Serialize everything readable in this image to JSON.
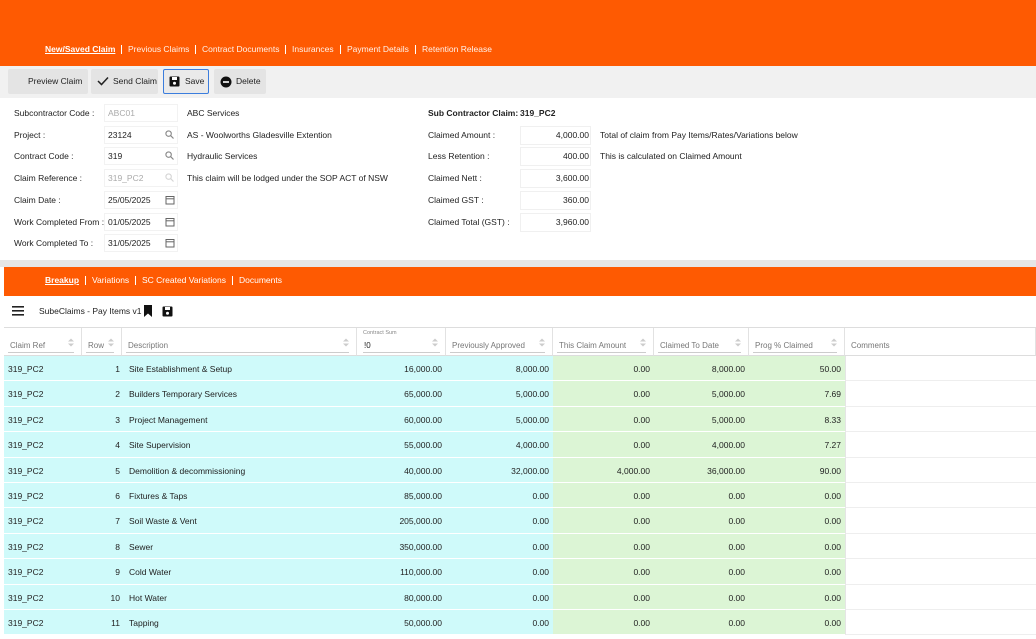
{
  "nav": {
    "tabs": [
      "New/Saved Claim",
      "Previous Claims",
      "Contract Documents",
      "Insurances",
      "Payment Details",
      "Retention Release"
    ]
  },
  "toolbar": {
    "buttons": [
      "Preview Claim",
      "Send Claim",
      "Save",
      "Delete"
    ]
  },
  "form": {
    "left": [
      {
        "label": "Subcontractor Code :",
        "value": "ABC01",
        "extra": "ABC Services"
      },
      {
        "label": "Project :",
        "value": "23124",
        "extra": "AS - Woolworths Gladesville Extention"
      },
      {
        "label": "Contract Code :",
        "value": "319",
        "extra": "Hydraulic Services"
      },
      {
        "label": "Claim Reference :",
        "value": "319_PC2",
        "extra": "This claim will be lodged under the SOP ACT of NSW"
      },
      {
        "label": "Claim Date :",
        "value": "25/05/2025"
      },
      {
        "label": "Work Completed From :",
        "value": "01/05/2025"
      },
      {
        "label": "Work Completed To :",
        "value": "31/05/2025"
      }
    ],
    "right": [
      {
        "label": "Sub Contractor Claim:",
        "value": "319_PC2"
      },
      {
        "label": "Claimed Amount :",
        "value": "4,000.00",
        "note": "Total of claim from Pay Items/Rates/Variations below"
      },
      {
        "label": "Less Retention :",
        "value": "400.00",
        "note": "This is calculated on Claimed Amount"
      },
      {
        "label": "Claimed Nett :",
        "value": "3,600.00"
      },
      {
        "label": "Claimed GST :",
        "value": "360.00"
      },
      {
        "label": "Claimed Total (GST) :",
        "value": "3,960.00"
      }
    ]
  },
  "sub_tabs": [
    "Breakup",
    "Variations",
    "SC Created Variations",
    "Documents"
  ],
  "grid": {
    "title": "SubeClaims - Pay Items v1",
    "columns": [
      "Claim Ref",
      "Row",
      "Description",
      "Contract Sum",
      "Previously Approved",
      "This Claim Amount",
      "Claimed To Date",
      "Prog % Claimed",
      "Comments"
    ],
    "contract_sum_filter": "!0",
    "rows": [
      [
        "319_PC2",
        "1",
        "Site Establishment & Setup",
        "16,000.00",
        "8,000.00",
        "0.00",
        "8,000.00",
        "50.00"
      ],
      [
        "319_PC2",
        "2",
        "Builders Temporary Services",
        "65,000.00",
        "5,000.00",
        "0.00",
        "5,000.00",
        "7.69"
      ],
      [
        "319_PC2",
        "3",
        "Project Management",
        "60,000.00",
        "5,000.00",
        "0.00",
        "5,000.00",
        "8.33"
      ],
      [
        "319_PC2",
        "4",
        "Site Supervision",
        "55,000.00",
        "4,000.00",
        "0.00",
        "4,000.00",
        "7.27"
      ],
      [
        "319_PC2",
        "5",
        "Demolition & decommissioning",
        "40,000.00",
        "32,000.00",
        "4,000.00",
        "36,000.00",
        "90.00"
      ],
      [
        "319_PC2",
        "6",
        "Fixtures & Taps",
        "85,000.00",
        "0.00",
        "0.00",
        "0.00",
        "0.00"
      ],
      [
        "319_PC2",
        "7",
        "Soil Waste & Vent",
        "205,000.00",
        "0.00",
        "0.00",
        "0.00",
        "0.00"
      ],
      [
        "319_PC2",
        "8",
        "Sewer",
        "350,000.00",
        "0.00",
        "0.00",
        "0.00",
        "0.00"
      ],
      [
        "319_PC2",
        "9",
        "Cold Water",
        "110,000.00",
        "0.00",
        "0.00",
        "0.00",
        "0.00"
      ],
      [
        "319_PC2",
        "10",
        "Hot Water",
        "80,000.00",
        "0.00",
        "0.00",
        "0.00",
        "0.00"
      ],
      [
        "319_PC2",
        "11",
        "Tapping",
        "50,000.00",
        "0.00",
        "0.00",
        "0.00",
        "0.00"
      ]
    ]
  }
}
